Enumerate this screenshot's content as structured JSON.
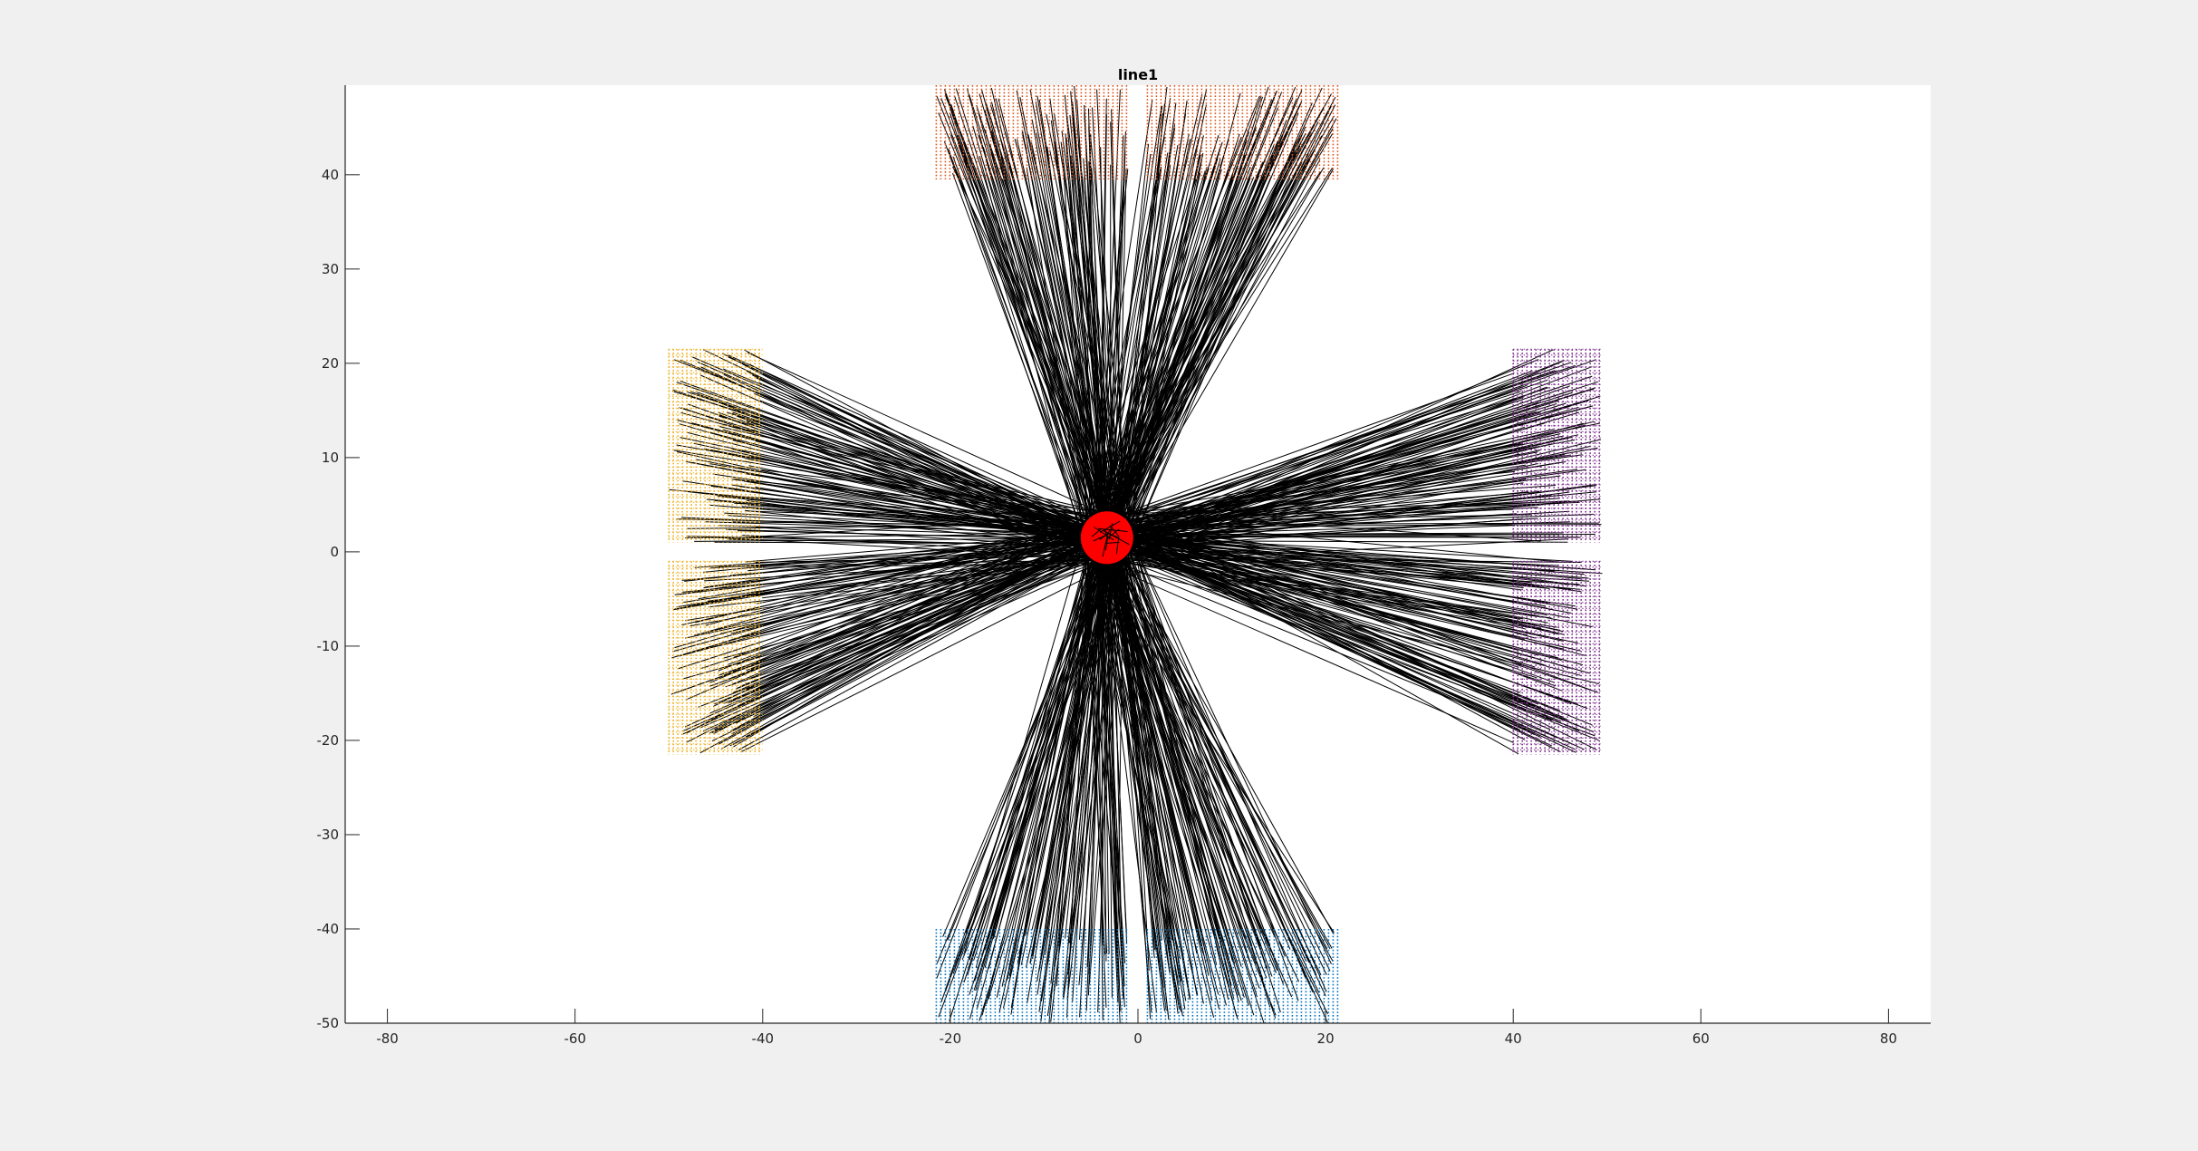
{
  "chart_data": {
    "type": "line",
    "title": "line1",
    "xlabel": "",
    "ylabel": "",
    "xlim": [
      -84.5,
      84.5
    ],
    "ylim": [
      -50,
      49.5
    ],
    "xticks": [
      -80,
      -60,
      -40,
      -20,
      0,
      20,
      40,
      60,
      80
    ],
    "xtick_labels": [
      "-80",
      "-60",
      "-40",
      "-20",
      "0",
      "20",
      "40",
      "60",
      "80"
    ],
    "yticks": [
      -50,
      -40,
      -30,
      -20,
      -10,
      0,
      10,
      20,
      30,
      40
    ],
    "ytick_labels": [
      "-50",
      "-40",
      "-30",
      "-20",
      "-10",
      "0",
      "10",
      "20",
      "30",
      "40"
    ],
    "grid": false,
    "center_cluster": {
      "x": -3.3,
      "y": 1.5,
      "radius": 2.8,
      "color": "#ff0000"
    },
    "line_color": "#000000",
    "series": [
      {
        "color": "#d95319",
        "x_range": [
          -21.5,
          -1
        ],
        "y_range": [
          39.5,
          49.5
        ]
      },
      {
        "color": "#d95319",
        "x_range": [
          1,
          21.5
        ],
        "y_range": [
          39.5,
          49.5
        ]
      },
      {
        "color": "#0072bd",
        "x_range": [
          -21.5,
          -1
        ],
        "y_range": [
          -50,
          -40
        ]
      },
      {
        "color": "#0072bd",
        "x_range": [
          1,
          21.5
        ],
        "y_range": [
          -50,
          -40
        ]
      },
      {
        "color": "#edb120",
        "x_range": [
          -50,
          -40
        ],
        "y_range": [
          1,
          21.5
        ]
      },
      {
        "color": "#edb120",
        "x_range": [
          -50,
          -40
        ],
        "y_range": [
          -21.5,
          -1
        ]
      },
      {
        "color": "#7e2f8e",
        "x_range": [
          40,
          49.5
        ],
        "y_range": [
          1,
          21.5
        ]
      },
      {
        "color": "#7e2f8e",
        "x_range": [
          40,
          49.5
        ],
        "y_range": [
          -21.5,
          -1
        ]
      }
    ]
  }
}
